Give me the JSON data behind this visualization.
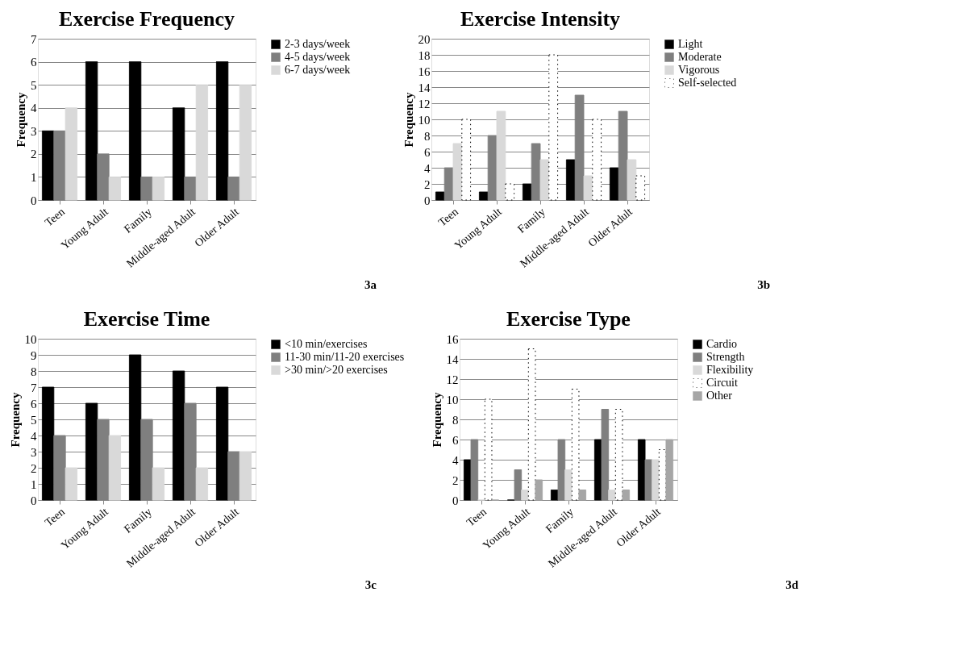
{
  "chart_data": [
    {
      "type": "bar",
      "title": "Exercise Frequency",
      "ylabel": "Frequency",
      "categories": [
        "Teen",
        "Young Adult",
        "Family",
        "Middle-aged Adult",
        "Older Adult"
      ],
      "series": [
        {
          "name": "2-3 days/week",
          "color": "#000000",
          "values": [
            3,
            6,
            6,
            4,
            6
          ]
        },
        {
          "name": "4-5 days/week",
          "color": "#7f7f7f",
          "values": [
            3,
            2,
            1,
            1,
            1
          ]
        },
        {
          "name": "6-7 days/week",
          "color": "#d9d9d9",
          "values": [
            4,
            1,
            1,
            5,
            5
          ]
        }
      ],
      "ylim": [
        0,
        7
      ],
      "yticks": [
        0,
        1,
        2,
        3,
        4,
        5,
        6,
        7
      ],
      "grid": "y",
      "legend": "right",
      "annotations": [
        "3a"
      ]
    },
    {
      "type": "bar",
      "title": "Exercise Intensity",
      "ylabel": "Frequency",
      "categories": [
        "Teen",
        "Young Adult",
        "Family",
        "Middle-aged Adult",
        "Older Adult"
      ],
      "series": [
        {
          "name": "Light",
          "color": "#000000",
          "values": [
            1,
            1,
            2,
            5,
            4
          ]
        },
        {
          "name": "Moderate",
          "color": "#7f7f7f",
          "values": [
            4,
            8,
            7,
            13,
            11
          ]
        },
        {
          "name": "Vigorous",
          "color": "#d9d9d9",
          "values": [
            7,
            11,
            5,
            3,
            5
          ]
        },
        {
          "name": "Self-selected",
          "color": "#ffffff",
          "values": [
            10,
            2,
            18,
            10,
            3
          ]
        }
      ],
      "ylim": [
        0,
        20
      ],
      "yticks": [
        0,
        2,
        4,
        6,
        8,
        10,
        12,
        14,
        16,
        18,
        20
      ],
      "grid": "y",
      "legend": "right",
      "annotations": [
        "3b"
      ]
    },
    {
      "type": "bar",
      "title": "Exercise Time",
      "ylabel": "Frequency",
      "categories": [
        "Teen",
        "Young Adult",
        "Family",
        "Middle-aged Adult",
        "Older Adult"
      ],
      "series": [
        {
          "name": "<10 min/exercises",
          "color": "#000000",
          "values": [
            7,
            6,
            9,
            8,
            7
          ]
        },
        {
          "name": "11-30 min/11-20 exercises",
          "color": "#7f7f7f",
          "values": [
            4,
            5,
            5,
            6,
            3
          ]
        },
        {
          "name": ">30 min/>20 exercises",
          "color": "#d9d9d9",
          "values": [
            2,
            4,
            2,
            2,
            3
          ]
        }
      ],
      "ylim": [
        0,
        10
      ],
      "yticks": [
        0,
        1,
        2,
        3,
        4,
        5,
        6,
        7,
        8,
        9,
        10
      ],
      "grid": "y",
      "legend": "right",
      "annotations": [
        "3c"
      ]
    },
    {
      "type": "bar",
      "title": "Exercise Type",
      "ylabel": "Frequency",
      "categories": [
        "Teen",
        "Young Adult",
        "Family",
        "Middle-aged Adult",
        "Older Adult"
      ],
      "series": [
        {
          "name": "Cardio",
          "color": "#000000",
          "values": [
            4,
            0,
            1,
            6,
            6
          ]
        },
        {
          "name": "Strength",
          "color": "#7f7f7f",
          "values": [
            6,
            3,
            6,
            9,
            4
          ]
        },
        {
          "name": "Flexibility",
          "color": "#d9d9d9",
          "values": [
            0,
            1,
            3,
            1,
            4
          ]
        },
        {
          "name": "Circuit",
          "color": "#ffffff",
          "values": [
            10,
            15,
            11,
            9,
            5
          ]
        },
        {
          "name": "Other",
          "color": "#a6a6a6",
          "values": [
            0,
            2,
            1,
            1,
            6
          ]
        }
      ],
      "ylim": [
        0,
        16
      ],
      "yticks": [
        0,
        2,
        4,
        6,
        8,
        10,
        12,
        14,
        16
      ],
      "grid": "y",
      "legend": "right",
      "annotations": [
        "3d"
      ]
    }
  ]
}
